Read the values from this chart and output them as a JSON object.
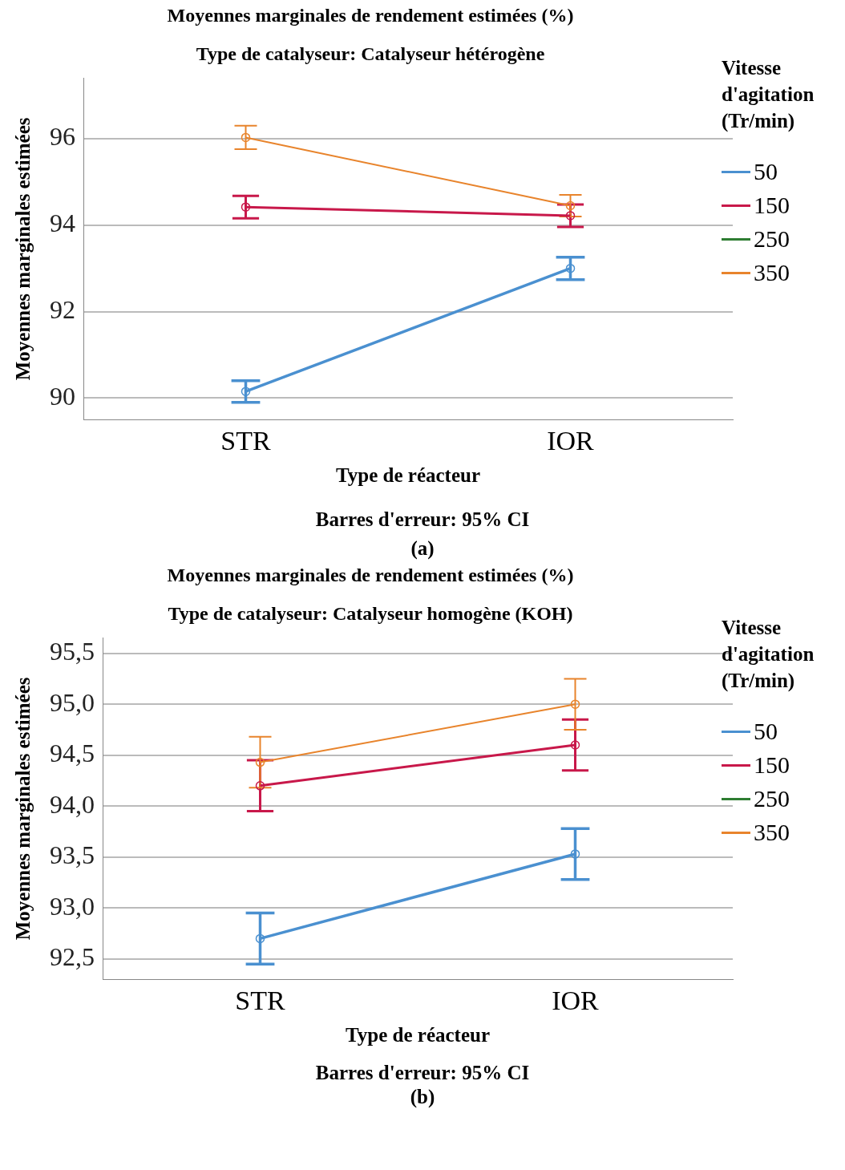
{
  "chart_data": [
    {
      "type": "line",
      "title": "Moyennes marginales de rendement estimées (%)",
      "subtitle": "Type de catalyseur: Catalyseur hétérogène",
      "xlabel": "Type de réacteur",
      "ylabel": "Moyennes marginales estimées",
      "legend_title": "Vitesse d'agitation (Tr/min)",
      "annotations": [
        "Barres d'erreur: 95% CI",
        "(a)"
      ],
      "categories": [
        "STR",
        "IOR"
      ],
      "series": [
        {
          "name": "50",
          "color": "#4a90d0",
          "values": [
            90.15,
            93.0
          ],
          "errors": [
            0.25,
            0.26
          ]
        },
        {
          "name": "150",
          "color": "#c8184a",
          "values": [
            94.42,
            94.22
          ],
          "errors": [
            0.26,
            0.26
          ]
        },
        {
          "name": "250",
          "color": "#2e7d32",
          "values": [
            null,
            null
          ]
        },
        {
          "name": "350",
          "color": "#e8842c",
          "values": [
            96.03,
            94.45
          ],
          "errors": [
            0.27,
            0.25
          ]
        }
      ],
      "ylim": [
        89.5,
        97.4
      ],
      "yticks": [
        90,
        92,
        94,
        96
      ],
      "grid": "y",
      "legend": "right",
      "marker": "circle",
      "line_style": "solid"
    },
    {
      "type": "line",
      "title": "Moyennes marginales de rendement estimées (%)",
      "subtitle": "Type de catalyseur: Catalyseur homogène (KOH)",
      "xlabel": "Type de réacteur",
      "ylabel": "Moyennes marginales estimées",
      "legend_title": "Vitesse d'agitation (Tr/min)",
      "annotations": [
        "Barres d'erreur: 95% CI",
        "(b)"
      ],
      "categories": [
        "STR",
        "IOR"
      ],
      "series": [
        {
          "name": "50",
          "color": "#4a90d0",
          "values": [
            92.7,
            93.53
          ],
          "errors": [
            0.25,
            0.25
          ]
        },
        {
          "name": "150",
          "color": "#c8184a",
          "values": [
            94.2,
            94.6
          ],
          "errors": [
            0.25,
            0.25
          ]
        },
        {
          "name": "250",
          "color": "#2e7d32",
          "values": [
            null,
            null
          ]
        },
        {
          "name": "350",
          "color": "#e8842c",
          "values": [
            94.43,
            95.0
          ],
          "errors": [
            0.25,
            0.25
          ]
        }
      ],
      "ylim": [
        92.3,
        95.65
      ],
      "yticks": [
        {
          "value": 92.5,
          "label": "92,5"
        },
        {
          "value": 93.0,
          "label": "93,0"
        },
        {
          "value": 93.5,
          "label": "93,5"
        },
        {
          "value": 94.0,
          "label": "94,0"
        },
        {
          "value": 94.5,
          "label": "94,5"
        },
        {
          "value": 95.0,
          "label": "95,0"
        },
        {
          "value": 95.5,
          "label": "95,5"
        }
      ],
      "grid": "y",
      "legend": "right",
      "marker": "circle",
      "line_style": "solid"
    }
  ]
}
